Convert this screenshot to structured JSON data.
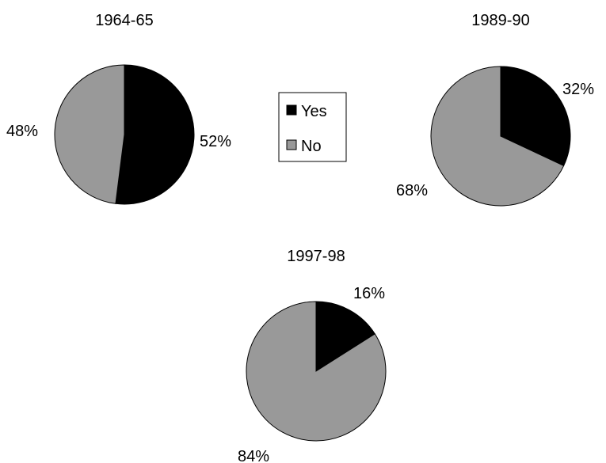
{
  "colors": {
    "yes": "#000000",
    "no": "#999999",
    "outline": "#000000",
    "background": "#ffffff"
  },
  "legend": {
    "entries": [
      {
        "label": "Yes",
        "color": "#000000"
      },
      {
        "label": "No",
        "color": "#999999"
      }
    ]
  },
  "chart_data": [
    {
      "type": "pie",
      "title": "1964-65",
      "slices": [
        {
          "name": "Yes",
          "value": 52,
          "label": "52%"
        },
        {
          "name": "No",
          "value": 48,
          "label": "48%"
        }
      ]
    },
    {
      "type": "pie",
      "title": "1989-90",
      "slices": [
        {
          "name": "Yes",
          "value": 32,
          "label": "32%"
        },
        {
          "name": "No",
          "value": 68,
          "label": "68%"
        }
      ]
    },
    {
      "type": "pie",
      "title": "1997-98",
      "slices": [
        {
          "name": "Yes",
          "value": 16,
          "label": "16%"
        },
        {
          "name": "No",
          "value": 84,
          "label": "84%"
        }
      ]
    }
  ]
}
